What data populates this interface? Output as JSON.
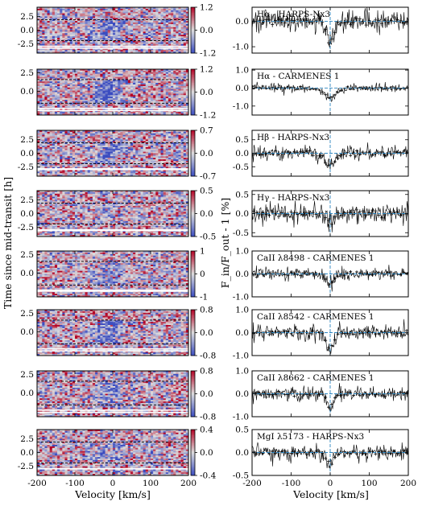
{
  "figure": {
    "left_xlabel": "Velocity [km/s]",
    "right_xlabel": "Velocity [km/s]",
    "left_ylabel": "Time since mid-transit [h]",
    "right_ylabel": "F_in/F_out - 1 [%]",
    "x_ticks": [
      "-200",
      "-100",
      "0",
      "100",
      "200"
    ],
    "colors": {
      "low": "#3b4cc0",
      "mid": "#dddddd",
      "high": "#b40426",
      "spectrum": "#000000",
      "marker": "#000000",
      "guide": "#2e86c1"
    }
  },
  "chart_data": [
    {
      "type": "heatmap",
      "panel": 1,
      "xlim": [
        -200,
        200
      ],
      "yticks": [
        "-2.5",
        "0.0",
        "2.5"
      ],
      "ylim": [
        -4.2,
        4.2
      ],
      "cbar": [
        "1.2",
        "0.0",
        "-1.2"
      ],
      "contacts": [
        -1.9,
        1.9
      ],
      "seed": 11,
      "signal": 0.55
    },
    {
      "type": "heatmap",
      "panel": 2,
      "xlim": [
        -200,
        200
      ],
      "yticks": [
        "0.0",
        "2.5"
      ],
      "ylim": [
        -3.2,
        3.0
      ],
      "cbar": [
        "1.2",
        "0.0",
        "-1.2"
      ],
      "contacts": [
        -1.6,
        1.6
      ],
      "seed": 23,
      "signal": 0.7
    },
    {
      "type": "heatmap",
      "panel": 3,
      "xlim": [
        -200,
        200
      ],
      "yticks": [
        "-2.5",
        "0.0",
        "2.5"
      ],
      "ylim": [
        -4.2,
        4.2
      ],
      "cbar": [
        "0.7",
        "0.0",
        "-0.7"
      ],
      "contacts": [
        -1.9,
        1.9
      ],
      "seed": 37,
      "signal": 0.45
    },
    {
      "type": "heatmap",
      "panel": 4,
      "xlim": [
        -200,
        200
      ],
      "yticks": [
        "-2.5",
        "0.0",
        "2.5"
      ],
      "ylim": [
        -4.2,
        4.2
      ],
      "cbar": [
        "0.5",
        "0.0",
        "-0.5"
      ],
      "contacts": [
        -1.9,
        1.9
      ],
      "seed": 41,
      "signal": 0.2
    },
    {
      "type": "heatmap",
      "panel": 5,
      "xlim": [
        -200,
        200
      ],
      "yticks": [
        "0.0",
        "2.5"
      ],
      "ylim": [
        -3.2,
        3.0
      ],
      "cbar": [
        "1",
        "0",
        "-1"
      ],
      "contacts": [
        -1.6,
        1.6
      ],
      "seed": 53,
      "signal": 0.35
    },
    {
      "type": "heatmap",
      "panel": 6,
      "xlim": [
        -200,
        200
      ],
      "yticks": [
        "0.0",
        "2.5"
      ],
      "ylim": [
        -3.2,
        3.0
      ],
      "cbar": [
        "0.8",
        "0.0",
        "-0.8"
      ],
      "contacts": [
        -1.6,
        1.6
      ],
      "seed": 67,
      "signal": 0.55
    },
    {
      "type": "heatmap",
      "panel": 7,
      "xlim": [
        -200,
        200
      ],
      "yticks": [
        "0.0",
        "2.5"
      ],
      "ylim": [
        -3.2,
        3.0
      ],
      "cbar": [
        "0.8",
        "0.0",
        "-0.8"
      ],
      "contacts": [
        -1.6,
        1.6
      ],
      "seed": 79,
      "signal": 0.35
    },
    {
      "type": "heatmap",
      "panel": 8,
      "xlim": [
        -200,
        200
      ],
      "yticks": [
        "-2.5",
        "0.0",
        "2.5"
      ],
      "ylim": [
        -4.2,
        4.2
      ],
      "cbar": [
        "0.4",
        "0.0",
        "-0.4"
      ],
      "contacts": [
        -1.9,
        1.9
      ],
      "seed": 83,
      "signal": 0.3
    },
    {
      "type": "line",
      "panel": 1,
      "label": "Hα - HARPS-Nx3",
      "xlim": [
        -200,
        200
      ],
      "ylim": [
        -1.25,
        0.55
      ],
      "yticks": [
        "0.0",
        "-1.0"
      ],
      "ytick_values": [
        0.0,
        -1.0
      ],
      "depth": -0.75,
      "width": 14,
      "noise": 0.22,
      "seed": 101
    },
    {
      "type": "line",
      "panel": 2,
      "label": "Hα - CARMENES 1",
      "xlim": [
        -200,
        200
      ],
      "ylim": [
        -1.5,
        1.05
      ],
      "yticks": [
        "1.0",
        "0.0",
        "-1.0"
      ],
      "ytick_values": [
        1.0,
        0.0,
        -1.0
      ],
      "depth": -0.55,
      "width": 22,
      "noise": 0.12,
      "seed": 113
    },
    {
      "type": "line",
      "panel": 3,
      "label": "Hβ - HARPS-Nx3",
      "xlim": [
        -0.85,
        0.85
      ],
      "ylim": [
        -0.85,
        0.85
      ],
      "yticks": [
        "0.5",
        "0.0",
        "-0.5"
      ],
      "ytick_values": [
        0.5,
        0.0,
        -0.5
      ],
      "depth": -0.45,
      "width": 20,
      "noise": 0.14,
      "seed": 127
    },
    {
      "type": "line",
      "panel": 4,
      "label": "Hγ - HARPS-Nx3",
      "xlim": [
        -200,
        200
      ],
      "ylim": [
        -0.6,
        0.6
      ],
      "yticks": [
        "0.5",
        "0.0",
        "-0.5"
      ],
      "ytick_values": [
        0.5,
        0.0,
        -0.5
      ],
      "depth": -0.2,
      "width": 14,
      "noise": 0.14,
      "seed": 131
    },
    {
      "type": "line",
      "panel": 5,
      "label": "CaII λ8498 - CARMENES 1",
      "xlim": [
        -200,
        200
      ],
      "ylim": [
        -1.0,
        1.0
      ],
      "yticks": [
        "1.0",
        "0.0",
        "-1.0"
      ],
      "ytick_values": [
        1.0,
        0.0,
        -1.0
      ],
      "depth": -0.45,
      "width": 14,
      "noise": 0.14,
      "seed": 149
    },
    {
      "type": "line",
      "panel": 6,
      "label": "CaII λ8542 - CARMENES 1",
      "xlim": [
        -200,
        200
      ],
      "ylim": [
        -1.0,
        1.0
      ],
      "yticks": [
        "1.0",
        "0.0",
        "-1.0"
      ],
      "ytick_values": [
        1.0,
        0.0,
        -1.0
      ],
      "depth": -0.7,
      "width": 14,
      "noise": 0.16,
      "seed": 157
    },
    {
      "type": "line",
      "panel": 7,
      "label": "CaII λ8662 - CARMENES 1",
      "xlim": [
        -200,
        200
      ],
      "ylim": [
        -1.0,
        1.0
      ],
      "yticks": [
        "1.0",
        "0.0",
        "-1.0"
      ],
      "ytick_values": [
        1.0,
        0.0,
        -1.0
      ],
      "depth": -0.6,
      "width": 12,
      "noise": 0.16,
      "seed": 163
    },
    {
      "type": "line",
      "panel": 8,
      "label": "MgI λ5173 - HARPS-Nx3",
      "xlim": [
        -200,
        200
      ],
      "ylim": [
        -0.5,
        0.5
      ],
      "yticks": [
        "0.5",
        "0.0",
        "-0.5"
      ],
      "ytick_values": [
        0.5,
        0.0,
        -0.5
      ],
      "depth": -0.25,
      "width": 12,
      "noise": 0.09,
      "seed": 173
    }
  ]
}
